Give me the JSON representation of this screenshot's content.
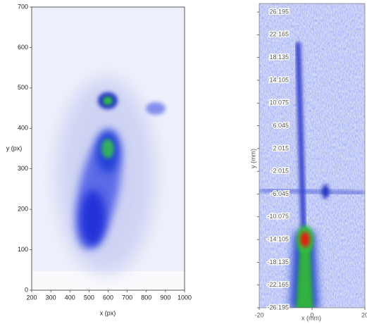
{
  "chart_data": [
    {
      "type": "heatmap",
      "x_label": "x (px)",
      "y_label": "y (px)",
      "xlim": [
        200,
        1000
      ],
      "ylim": [
        0,
        700
      ],
      "xticks": [
        200,
        300,
        400,
        500,
        600,
        700,
        800,
        900,
        1000
      ],
      "yticks": [
        0,
        100,
        200,
        300,
        400,
        500,
        600,
        700
      ]
    },
    {
      "type": "heatmap",
      "x_label": "x (mm)",
      "y_label": "y (mm)",
      "xlim": [
        -20,
        20
      ],
      "ylim": [
        -26.195,
        27.7
      ],
      "xticks": [
        -20,
        0,
        20
      ],
      "yticks": [
        26.195,
        22.165,
        18.135,
        14.105,
        10.075,
        6.045,
        2.015,
        -2.015,
        -6.045,
        -10.075,
        -14.105,
        -18.135,
        -22.165,
        -26.195
      ]
    }
  ]
}
